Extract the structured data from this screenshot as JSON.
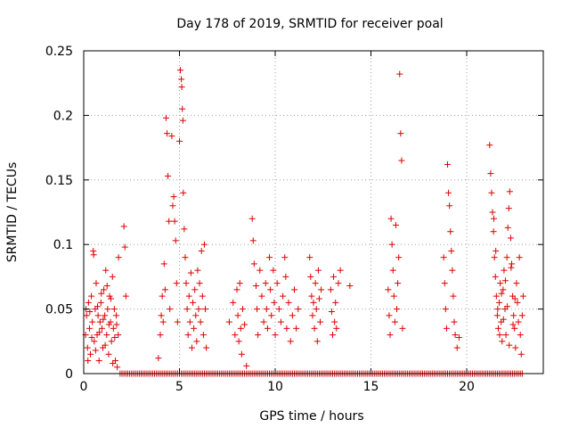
{
  "chart_data": {
    "type": "scatter",
    "title": "Day 178 of 2019, SRMTID for receiver poal",
    "xlabel": "GPS time / hours",
    "ylabel": "SRMTID / TECUs",
    "xlim": [
      0,
      24
    ],
    "ylim": [
      0,
      0.25
    ],
    "x_ticks": [
      0,
      5,
      10,
      15,
      20
    ],
    "y_ticks": [
      0,
      0.05,
      0.1,
      0.15,
      0.2,
      0.25
    ],
    "x_tick_labels": [
      "0",
      "5",
      "10",
      "15",
      "20"
    ],
    "y_tick_labels": [
      "0",
      "0.05",
      "0.1",
      "0.15",
      "0.2",
      "0.25"
    ],
    "grid": true,
    "marker": "+",
    "color": "#dd0000",
    "series": [
      {
        "name": "SRMTID",
        "points": [
          [
            0.1,
            0.03
          ],
          [
            0.15,
            0.045
          ],
          [
            0.2,
            0.02
          ],
          [
            0.25,
            0.055
          ],
          [
            0.3,
            0.035
          ],
          [
            0.35,
            0.015
          ],
          [
            0.4,
            0.06
          ],
          [
            0.45,
            0.04
          ],
          [
            0.5,
            0.095
          ],
          [
            0.55,
            0.025
          ],
          [
            0.6,
            0.05
          ],
          [
            0.65,
            0.07
          ],
          [
            0.7,
            0.03
          ],
          [
            0.75,
            0.045
          ],
          [
            0.8,
            0.01
          ],
          [
            0.85,
            0.04
          ],
          [
            0.9,
            0.055
          ],
          [
            0.95,
            0.035
          ],
          [
            1.0,
            0.02
          ],
          [
            1.05,
            0.065
          ],
          [
            1.1,
            0.045
          ],
          [
            1.15,
            0.08
          ],
          [
            1.2,
            0.03
          ],
          [
            1.25,
            0.05
          ],
          [
            1.3,
            0.015
          ],
          [
            1.35,
            0.06
          ],
          [
            1.4,
            0.04
          ],
          [
            1.45,
            0.025
          ],
          [
            1.5,
            0.075
          ],
          [
            1.55,
            0.035
          ],
          [
            1.6,
            0.05
          ],
          [
            1.65,
            0.01
          ],
          [
            1.7,
            0.045
          ],
          [
            1.75,
            0.005
          ],
          [
            1.8,
            0.03
          ],
          [
            0.12,
            0.05
          ],
          [
            0.22,
            0.01
          ],
          [
            0.32,
            0.048
          ],
          [
            0.42,
            0.028
          ],
          [
            0.52,
            0.092
          ],
          [
            0.62,
            0.018
          ],
          [
            0.72,
            0.052
          ],
          [
            0.82,
            0.032
          ],
          [
            0.92,
            0.062
          ],
          [
            1.02,
            0.042
          ],
          [
            1.12,
            0.022
          ],
          [
            1.22,
            0.068
          ],
          [
            1.32,
            0.038
          ],
          [
            1.42,
            0.058
          ],
          [
            1.52,
            0.008
          ],
          [
            1.62,
            0.028
          ],
          [
            1.72,
            0.038
          ],
          [
            1.82,
            0.09
          ],
          [
            2.1,
            0.114
          ],
          [
            2.15,
            0.098
          ],
          [
            2.2,
            0.06
          ],
          [
            3.9,
            0.012
          ],
          [
            4.0,
            0.03
          ],
          [
            4.05,
            0.045
          ],
          [
            4.1,
            0.06
          ],
          [
            4.15,
            0.04
          ],
          [
            4.2,
            0.085
          ],
          [
            4.25,
            0.065
          ],
          [
            4.3,
            0.198
          ],
          [
            4.35,
            0.186
          ],
          [
            4.4,
            0.153
          ],
          [
            4.45,
            0.118
          ],
          [
            4.5,
            0.05
          ],
          [
            4.6,
            0.184
          ],
          [
            4.65,
            0.13
          ],
          [
            4.7,
            0.137
          ],
          [
            4.75,
            0.118
          ],
          [
            4.8,
            0.103
          ],
          [
            4.85,
            0.07
          ],
          [
            4.9,
            0.04
          ],
          [
            5.0,
            0.18
          ],
          [
            5.05,
            0.235
          ],
          [
            5.1,
            0.228
          ],
          [
            5.12,
            0.222
          ],
          [
            5.15,
            0.205
          ],
          [
            5.18,
            0.196
          ],
          [
            5.2,
            0.14
          ],
          [
            5.25,
            0.112
          ],
          [
            5.3,
            0.09
          ],
          [
            5.35,
            0.07
          ],
          [
            5.4,
            0.05
          ],
          [
            5.45,
            0.03
          ],
          [
            5.5,
            0.06
          ],
          [
            5.55,
            0.04
          ],
          [
            5.6,
            0.078
          ],
          [
            5.65,
            0.02
          ],
          [
            5.7,
            0.055
          ],
          [
            5.75,
            0.035
          ],
          [
            5.8,
            0.065
          ],
          [
            5.85,
            0.045
          ],
          [
            5.9,
            0.025
          ],
          [
            5.95,
            0.08
          ],
          [
            6.0,
            0.05
          ],
          [
            6.05,
            0.07
          ],
          [
            6.1,
            0.04
          ],
          [
            6.15,
            0.095
          ],
          [
            6.2,
            0.06
          ],
          [
            6.25,
            0.03
          ],
          [
            6.3,
            0.1
          ],
          [
            6.35,
            0.05
          ],
          [
            6.4,
            0.02
          ],
          [
            7.6,
            0.04
          ],
          [
            7.8,
            0.055
          ],
          [
            7.9,
            0.03
          ],
          [
            8.0,
            0.065
          ],
          [
            8.05,
            0.045
          ],
          [
            8.1,
            0.025
          ],
          [
            8.15,
            0.07
          ],
          [
            8.2,
            0.035
          ],
          [
            8.25,
            0.015
          ],
          [
            8.3,
            0.05
          ],
          [
            8.4,
            0.038
          ],
          [
            8.5,
            0.006
          ],
          [
            8.8,
            0.12
          ],
          [
            8.85,
            0.103
          ],
          [
            8.9,
            0.085
          ],
          [
            9.0,
            0.068
          ],
          [
            9.05,
            0.05
          ],
          [
            9.1,
            0.03
          ],
          [
            9.2,
            0.08
          ],
          [
            9.3,
            0.06
          ],
          [
            9.4,
            0.04
          ],
          [
            9.5,
            0.07
          ],
          [
            9.55,
            0.05
          ],
          [
            9.6,
            0.035
          ],
          [
            9.7,
            0.09
          ],
          [
            9.75,
            0.065
          ],
          [
            9.8,
            0.045
          ],
          [
            9.9,
            0.08
          ],
          [
            9.95,
            0.055
          ],
          [
            10.0,
            0.03
          ],
          [
            10.1,
            0.07
          ],
          [
            10.2,
            0.05
          ],
          [
            10.3,
            0.04
          ],
          [
            10.4,
            0.06
          ],
          [
            10.5,
            0.09
          ],
          [
            10.55,
            0.075
          ],
          [
            10.6,
            0.035
          ],
          [
            10.7,
            0.055
          ],
          [
            10.8,
            0.025
          ],
          [
            10.9,
            0.045
          ],
          [
            11.0,
            0.065
          ],
          [
            11.1,
            0.035
          ],
          [
            11.2,
            0.05
          ],
          [
            11.8,
            0.09
          ],
          [
            11.85,
            0.075
          ],
          [
            11.9,
            0.06
          ],
          [
            11.95,
            0.045
          ],
          [
            12.0,
            0.055
          ],
          [
            12.05,
            0.035
          ],
          [
            12.1,
            0.07
          ],
          [
            12.15,
            0.05
          ],
          [
            12.2,
            0.025
          ],
          [
            12.25,
            0.08
          ],
          [
            12.3,
            0.058
          ],
          [
            12.35,
            0.04
          ],
          [
            12.4,
            0.065
          ],
          [
            12.9,
            0.065
          ],
          [
            12.95,
            0.048
          ],
          [
            13.0,
            0.03
          ],
          [
            13.05,
            0.075
          ],
          [
            13.1,
            0.04
          ],
          [
            13.15,
            0.055
          ],
          [
            13.2,
            0.035
          ],
          [
            13.3,
            0.07
          ],
          [
            13.4,
            0.08
          ],
          [
            13.9,
            0.068
          ],
          [
            15.9,
            0.065
          ],
          [
            15.95,
            0.045
          ],
          [
            16.0,
            0.03
          ],
          [
            16.05,
            0.12
          ],
          [
            16.1,
            0.1
          ],
          [
            16.15,
            0.08
          ],
          [
            16.2,
            0.06
          ],
          [
            16.25,
            0.04
          ],
          [
            16.3,
            0.115
          ],
          [
            16.35,
            0.05
          ],
          [
            16.4,
            0.07
          ],
          [
            16.45,
            0.09
          ],
          [
            16.5,
            0.232
          ],
          [
            16.55,
            0.186
          ],
          [
            16.6,
            0.165
          ],
          [
            16.65,
            0.035
          ],
          [
            18.8,
            0.09
          ],
          [
            18.85,
            0.07
          ],
          [
            18.9,
            0.05
          ],
          [
            18.95,
            0.035
          ],
          [
            19.0,
            0.162
          ],
          [
            19.05,
            0.14
          ],
          [
            19.1,
            0.13
          ],
          [
            19.15,
            0.11
          ],
          [
            19.2,
            0.095
          ],
          [
            19.25,
            0.08
          ],
          [
            19.3,
            0.06
          ],
          [
            19.35,
            0.04
          ],
          [
            19.4,
            0.03
          ],
          [
            19.5,
            0.02
          ],
          [
            19.6,
            0.028
          ],
          [
            21.2,
            0.177
          ],
          [
            21.25,
            0.155
          ],
          [
            21.3,
            0.14
          ],
          [
            21.35,
            0.125
          ],
          [
            21.4,
            0.11
          ],
          [
            21.45,
            0.09
          ],
          [
            21.5,
            0.075
          ],
          [
            21.55,
            0.06
          ],
          [
            21.6,
            0.045
          ],
          [
            21.65,
            0.035
          ],
          [
            21.7,
            0.055
          ],
          [
            21.75,
            0.07
          ],
          [
            21.8,
            0.04
          ],
          [
            21.85,
            0.025
          ],
          [
            21.9,
            0.065
          ],
          [
            21.95,
            0.08
          ],
          [
            22.0,
            0.05
          ],
          [
            22.05,
            0.03
          ],
          [
            22.1,
            0.09
          ],
          [
            22.15,
            0.113
          ],
          [
            22.2,
            0.128
          ],
          [
            22.25,
            0.141
          ],
          [
            22.3,
            0.105
          ],
          [
            22.35,
            0.085
          ],
          [
            22.4,
            0.06
          ],
          [
            22.45,
            0.045
          ],
          [
            22.5,
            0.035
          ],
          [
            22.55,
            0.02
          ],
          [
            22.6,
            0.07
          ],
          [
            22.65,
            0.055
          ],
          [
            22.7,
            0.04
          ],
          [
            22.75,
            0.09
          ],
          [
            22.8,
            0.03
          ],
          [
            22.85,
            0.015
          ],
          [
            22.9,
            0.045
          ],
          [
            22.95,
            0.06
          ],
          [
            21.42,
            0.12
          ],
          [
            21.52,
            0.095
          ],
          [
            21.62,
            0.05
          ],
          [
            21.72,
            0.03
          ],
          [
            21.82,
            0.062
          ],
          [
            21.92,
            0.042
          ],
          [
            22.02,
            0.072
          ],
          [
            22.12,
            0.052
          ],
          [
            22.22,
            0.022
          ],
          [
            22.32,
            0.082
          ],
          [
            22.42,
            0.038
          ],
          [
            22.52,
            0.058
          ]
        ]
      }
    ]
  }
}
